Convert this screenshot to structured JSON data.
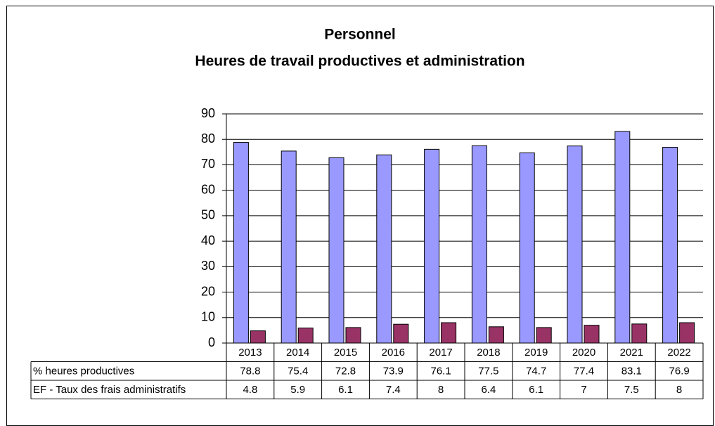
{
  "chart_data": {
    "type": "bar",
    "title": [
      "Personnel",
      "Heures de travail productives et administration"
    ],
    "categories": [
      "2013",
      "2014",
      "2015",
      "2016",
      "2017",
      "2018",
      "2019",
      "2020",
      "2021",
      "2022"
    ],
    "series": [
      {
        "name": "% heures productives",
        "color": "#9999ff",
        "values": [
          78.8,
          75.4,
          72.8,
          73.9,
          76.1,
          77.5,
          74.7,
          77.4,
          83.1,
          76.9
        ]
      },
      {
        "name": "EF - Taux des frais administratifs",
        "color": "#993366",
        "values": [
          4.8,
          5.9,
          6.1,
          7.4,
          8,
          6.4,
          6.1,
          7,
          7.5,
          8
        ]
      }
    ],
    "ylim": [
      0,
      90
    ],
    "yticks": [
      0,
      10,
      20,
      30,
      40,
      50,
      60,
      70,
      80,
      90
    ],
    "grid": true
  }
}
